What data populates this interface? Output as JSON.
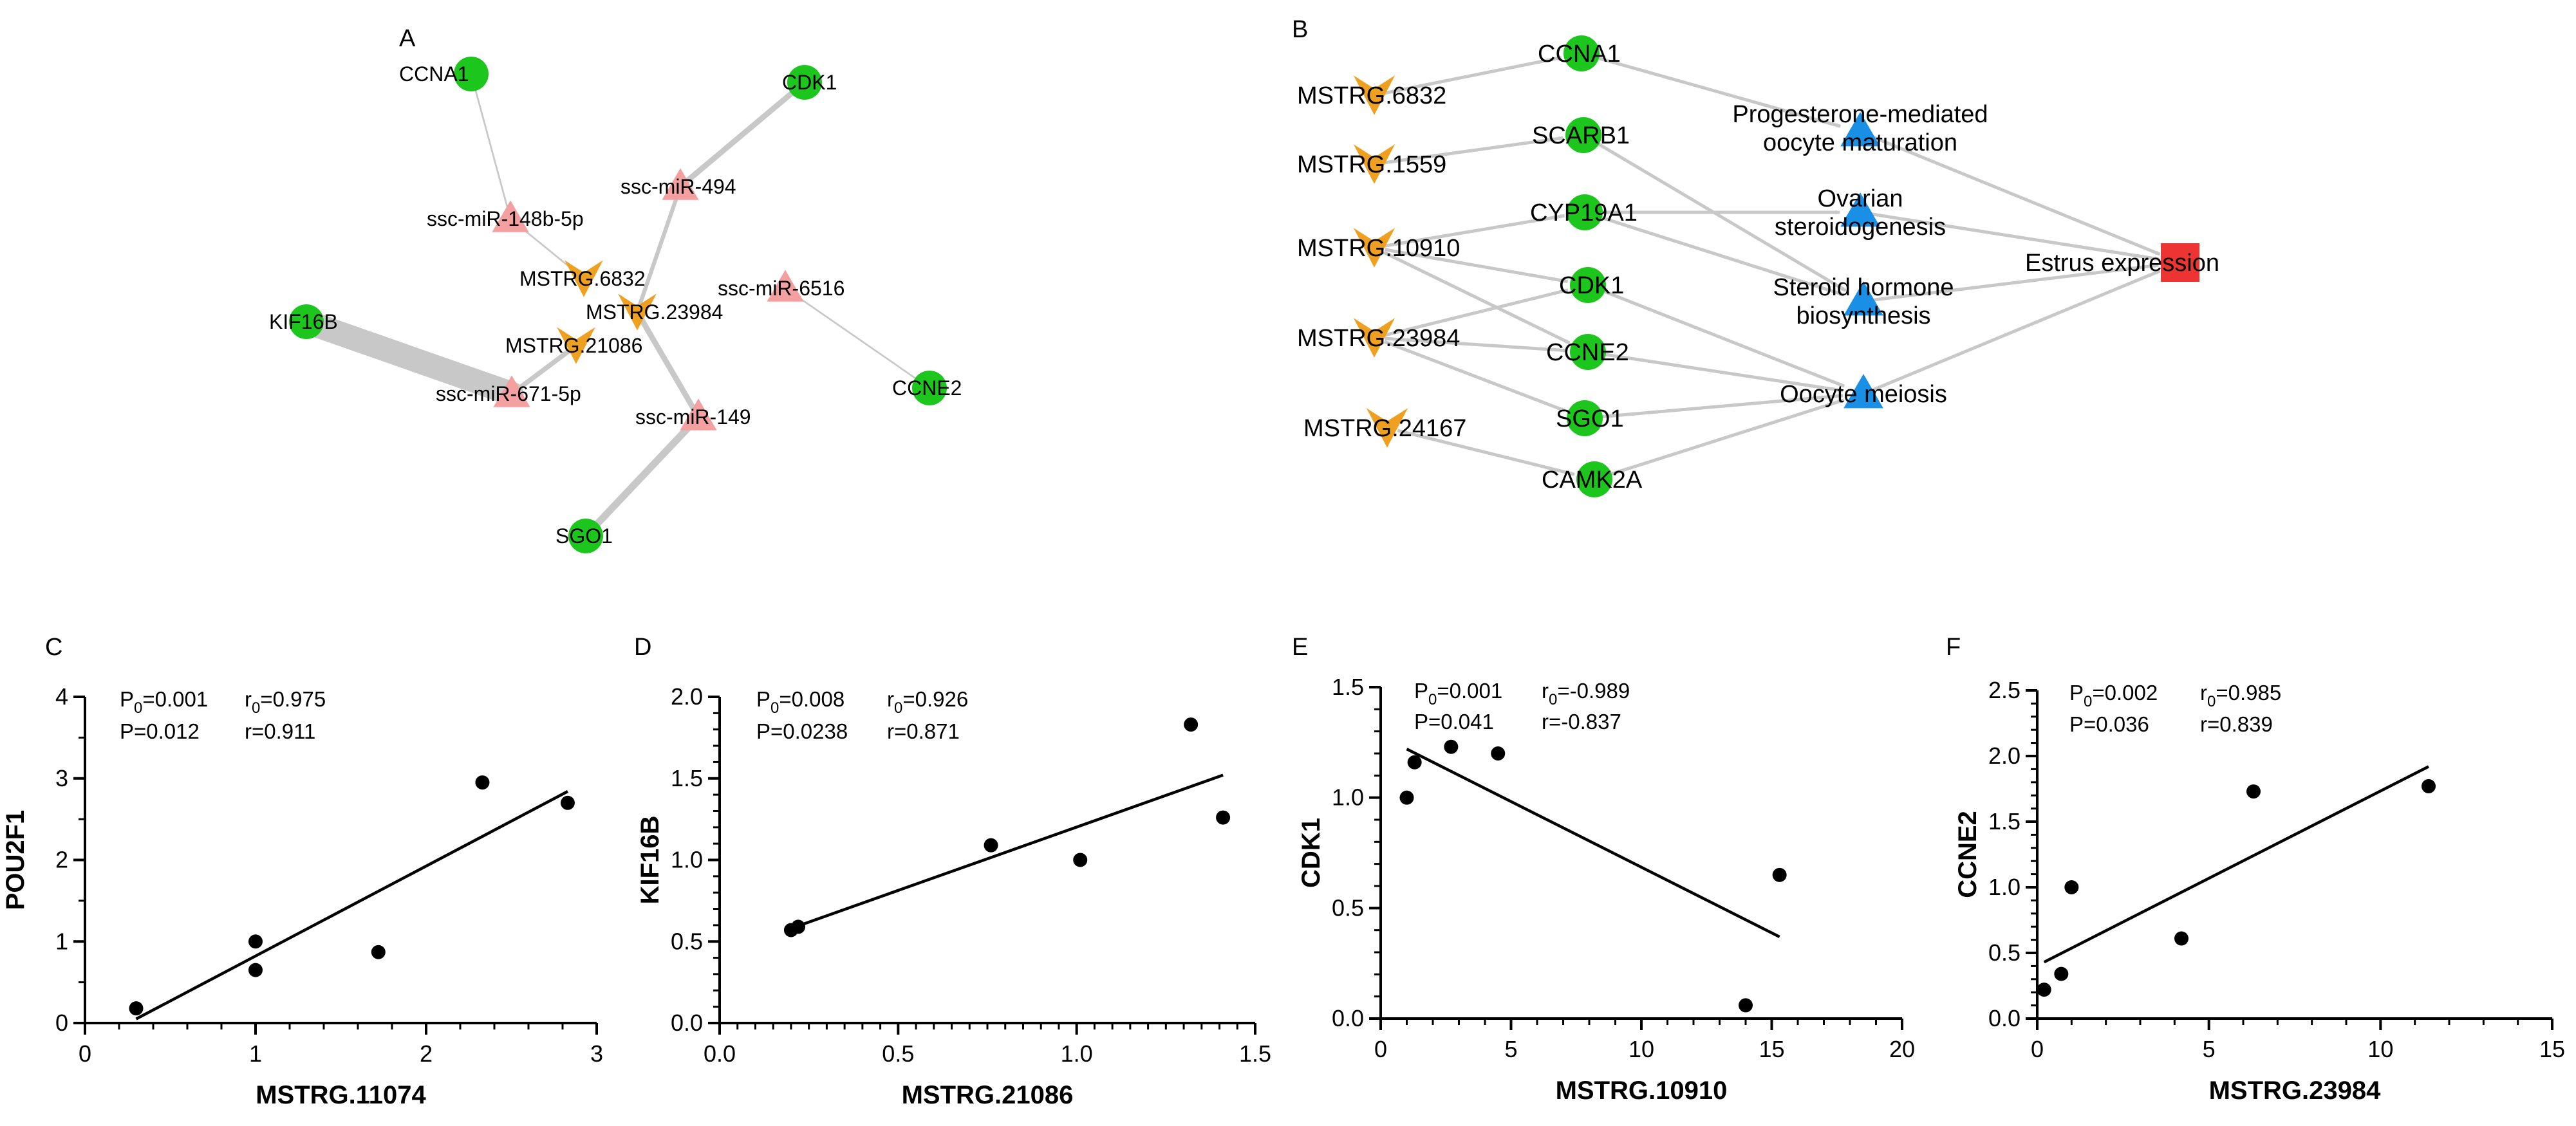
{
  "colors": {
    "gene": "#1cc61c",
    "mirna": "#f4a0a0",
    "lncrna": "#f0a020",
    "pathway": "#1a8fe6",
    "phenotype": "#ee3333",
    "edge": "#c8c8c8",
    "point": "#000000"
  },
  "network_a": {
    "letter": "A",
    "nodes": [
      {
        "id": "CCNA1",
        "label": "CCNA1",
        "type": "gene"
      },
      {
        "id": "CDK1",
        "label": "CDK1",
        "type": "gene"
      },
      {
        "id": "KIF16B",
        "label": "KIF16B",
        "type": "gene"
      },
      {
        "id": "CCNE2",
        "label": "CCNE2",
        "type": "gene"
      },
      {
        "id": "SGO1",
        "label": "SGO1",
        "type": "gene"
      },
      {
        "id": "miR148",
        "label": "ssc-miR-148b-5p",
        "type": "mirna"
      },
      {
        "id": "miR494",
        "label": "ssc-miR-494",
        "type": "mirna"
      },
      {
        "id": "miR6516",
        "label": "ssc-miR-6516",
        "type": "mirna"
      },
      {
        "id": "miR671",
        "label": "ssc-miR-671-5p",
        "type": "mirna"
      },
      {
        "id": "miR149",
        "label": "ssc-miR-149",
        "type": "mirna"
      },
      {
        "id": "M6832",
        "label": "MSTRG.6832",
        "type": "lncrna"
      },
      {
        "id": "M23984",
        "label": "MSTRG.23984",
        "type": "lncrna"
      },
      {
        "id": "M21086",
        "label": "MSTRG.21086",
        "type": "lncrna"
      }
    ],
    "edges": [
      {
        "from": "CCNA1",
        "to": "miR148",
        "weight": 1
      },
      {
        "from": "miR148",
        "to": "M6832",
        "weight": 1
      },
      {
        "from": "CDK1",
        "to": "miR494",
        "weight": 6
      },
      {
        "from": "miR494",
        "to": "M23984",
        "weight": 4
      },
      {
        "from": "M23984",
        "to": "miR149",
        "weight": 6
      },
      {
        "from": "miR149",
        "to": "SGO1",
        "weight": 8
      },
      {
        "from": "miR6516",
        "to": "CCNE2",
        "weight": 1
      },
      {
        "from": "KIF16B",
        "to": "miR671",
        "weight": 30
      },
      {
        "from": "miR671",
        "to": "M21086",
        "weight": 5
      }
    ]
  },
  "network_b": {
    "letter": "B",
    "nodes": [
      {
        "id": "L6832",
        "label": "MSTRG.6832",
        "type": "lncrna"
      },
      {
        "id": "L1559",
        "label": "MSTRG.1559",
        "type": "lncrna"
      },
      {
        "id": "L10910",
        "label": "MSTRG.10910",
        "type": "lncrna"
      },
      {
        "id": "L23984",
        "label": "MSTRG.23984",
        "type": "lncrna"
      },
      {
        "id": "L24167",
        "label": "MSTRG.24167",
        "type": "lncrna"
      },
      {
        "id": "G_CCNA1",
        "label": "CCNA1",
        "type": "gene"
      },
      {
        "id": "G_SCARB1",
        "label": "SCARB1",
        "type": "gene"
      },
      {
        "id": "G_CYP19A1",
        "label": "CYP19A1",
        "type": "gene"
      },
      {
        "id": "G_CDK1",
        "label": "CDK1",
        "type": "gene"
      },
      {
        "id": "G_CCNE2",
        "label": "CCNE2",
        "type": "gene"
      },
      {
        "id": "G_SGO1",
        "label": "SGO1",
        "type": "gene"
      },
      {
        "id": "G_CAMK2A",
        "label": "CAMK2A",
        "type": "gene"
      },
      {
        "id": "P_prog",
        "label": "Progesterone-mediated\noocyte maturation",
        "type": "pathway"
      },
      {
        "id": "P_ovar",
        "label": "Ovarian\nsteroidogenesis",
        "type": "pathway"
      },
      {
        "id": "P_ster",
        "label": "Steroid hormone\nbiosynthesis",
        "type": "pathway"
      },
      {
        "id": "P_meio",
        "label": "Oocyte meiosis",
        "type": "pathway"
      },
      {
        "id": "E",
        "label": "Estrus expression",
        "type": "phenotype"
      }
    ],
    "edges": [
      {
        "from": "L6832",
        "to": "G_CCNA1"
      },
      {
        "from": "L1559",
        "to": "G_SCARB1"
      },
      {
        "from": "L10910",
        "to": "G_CYP19A1"
      },
      {
        "from": "L10910",
        "to": "G_CDK1"
      },
      {
        "from": "L10910",
        "to": "G_CCNE2"
      },
      {
        "from": "L23984",
        "to": "G_CDK1"
      },
      {
        "from": "L23984",
        "to": "G_CCNE2"
      },
      {
        "from": "L23984",
        "to": "G_SGO1"
      },
      {
        "from": "L24167",
        "to": "G_CAMK2A"
      },
      {
        "from": "G_CCNA1",
        "to": "P_prog"
      },
      {
        "from": "G_SCARB1",
        "to": "P_ster"
      },
      {
        "from": "G_CYP19A1",
        "to": "P_ovar"
      },
      {
        "from": "G_CYP19A1",
        "to": "P_ster"
      },
      {
        "from": "G_CDK1",
        "to": "P_meio"
      },
      {
        "from": "G_CCNE2",
        "to": "P_meio"
      },
      {
        "from": "G_SGO1",
        "to": "P_meio"
      },
      {
        "from": "G_CAMK2A",
        "to": "P_meio"
      },
      {
        "from": "P_prog",
        "to": "E"
      },
      {
        "from": "P_ovar",
        "to": "E"
      },
      {
        "from": "P_ster",
        "to": "E"
      },
      {
        "from": "P_meio",
        "to": "E"
      }
    ]
  },
  "chart_data": [
    {
      "type": "scatter",
      "letter": "C",
      "xlabel": "MSTRG.11074",
      "ylabel": "POU2F1",
      "xlim": [
        0,
        3
      ],
      "ylim": [
        0,
        4
      ],
      "xticks": [
        0,
        1,
        2,
        3
      ],
      "yticks": [
        0,
        1,
        2,
        3,
        4
      ],
      "x_minor_step": 0.2,
      "y_minor_step": 0.5,
      "points": [
        [
          0.3,
          0.18
        ],
        [
          1.0,
          1.0
        ],
        [
          1.0,
          0.65
        ],
        [
          1.72,
          0.87
        ],
        [
          2.33,
          2.95
        ],
        [
          2.83,
          2.7
        ]
      ],
      "fit_line": [
        [
          0.3,
          0.05
        ],
        [
          2.83,
          2.84
        ]
      ],
      "stats": {
        "p0": "P0=0.001",
        "r0": "r0=0.975",
        "p": "P=0.012",
        "r": "r=0.911"
      }
    },
    {
      "type": "scatter",
      "letter": "D",
      "xlabel": "MSTRG.21086",
      "ylabel": "KIF16B",
      "xlim": [
        0,
        1.5
      ],
      "ylim": [
        0,
        2.0
      ],
      "xticks": [
        0.0,
        0.5,
        1.0,
        1.5
      ],
      "yticks": [
        0.0,
        0.5,
        1.0,
        1.5,
        2.0
      ],
      "x_minor_step": 0.05,
      "y_minor_step": 0.1,
      "points": [
        [
          0.2,
          0.57
        ],
        [
          0.22,
          0.59
        ],
        [
          0.76,
          1.09
        ],
        [
          1.01,
          1.0
        ],
        [
          1.32,
          1.83
        ],
        [
          1.41,
          1.26
        ]
      ],
      "fit_line": [
        [
          0.2,
          0.58
        ],
        [
          1.41,
          1.52
        ]
      ],
      "stats": {
        "p0": "P0=0.008",
        "r0": "r0=0.926",
        "p": "P=0.0238",
        "r": "r=0.871"
      }
    },
    {
      "type": "scatter",
      "letter": "E",
      "xlabel": "MSTRG.10910",
      "ylabel": "CDK1",
      "xlim": [
        0,
        20
      ],
      "ylim": [
        0,
        1.5
      ],
      "xticks": [
        0,
        5,
        10,
        15,
        20
      ],
      "yticks": [
        0.0,
        0.5,
        1.0,
        1.5
      ],
      "x_minor_step": 1,
      "y_minor_step": 0.1,
      "points": [
        [
          1.0,
          1.0
        ],
        [
          1.3,
          1.16
        ],
        [
          2.7,
          1.23
        ],
        [
          4.5,
          1.2
        ],
        [
          14.0,
          0.06
        ],
        [
          15.3,
          0.65
        ]
      ],
      "fit_line": [
        [
          1.0,
          1.22
        ],
        [
          15.3,
          0.37
        ]
      ],
      "stats": {
        "p0": "P0=0.001",
        "r0": "r0=-0.989",
        "p": "P=0.041",
        "r": "r=-0.837"
      }
    },
    {
      "type": "scatter",
      "letter": "F",
      "xlabel": "MSTRG.23984",
      "ylabel": "CCNE2",
      "xlim": [
        0,
        15
      ],
      "ylim": [
        0,
        2.5
      ],
      "xticks": [
        0,
        5,
        10,
        15
      ],
      "yticks": [
        0.0,
        0.5,
        1.0,
        1.5,
        2.0,
        2.5
      ],
      "x_minor_step": 1,
      "y_minor_step": 0.1,
      "points": [
        [
          0.2,
          0.22
        ],
        [
          0.7,
          0.34
        ],
        [
          1.0,
          1.0
        ],
        [
          4.2,
          0.61
        ],
        [
          6.3,
          1.73
        ],
        [
          11.4,
          1.77
        ]
      ],
      "fit_line": [
        [
          0.2,
          0.43
        ],
        [
          11.4,
          1.92
        ]
      ],
      "stats": {
        "p0": "P0=0.002",
        "r0": "r0=0.985",
        "p": "P=0.036",
        "r": "r=0.839"
      }
    }
  ]
}
